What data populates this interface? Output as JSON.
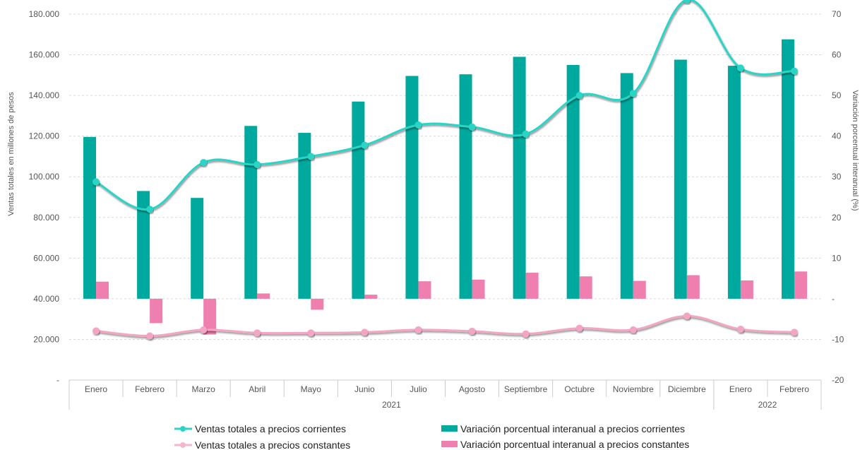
{
  "chart_data": {
    "type": "bar",
    "title": "",
    "categories": [
      "Enero",
      "Febrero",
      "Marzo",
      "Abril",
      "Mayo",
      "Junio",
      "Julio",
      "Agosto",
      "Septiembre",
      "Octubre",
      "Noviembre",
      "Diciembre",
      "Enero",
      "Febrero"
    ],
    "category_groups": [
      {
        "label": "2021",
        "count": 12
      },
      {
        "label": "2022",
        "count": 2
      }
    ],
    "ylabel_left": "Ventas totales en millones de pesos",
    "ylabel_right": "Variación porcentual interanual (%)",
    "ylim_left": [
      0,
      180000
    ],
    "ylim_right": [
      -20,
      70
    ],
    "yticks_left": [
      "-",
      "20.000",
      "40.000",
      "60.000",
      "80.000",
      "100.000",
      "120.000",
      "140.000",
      "160.000",
      "180.000"
    ],
    "yticks_right": [
      "-20",
      "-10",
      "-",
      "10",
      "20",
      "30",
      "40",
      "50",
      "60",
      "70"
    ],
    "grid": true,
    "legend_position": "bottom",
    "series": [
      {
        "name": "Ventas totales a precios corrientes",
        "type": "line",
        "axis": "left",
        "color": "#2ad4c6",
        "values": [
          97500,
          84000,
          107000,
          106000,
          110000,
          115500,
          125500,
          124500,
          121000,
          140000,
          141000,
          187000,
          153500,
          152000
        ]
      },
      {
        "name": "Ventas totales a precios constantes",
        "type": "line",
        "axis": "left",
        "color": "#f2a6c4",
        "values": [
          24200,
          21700,
          24700,
          23200,
          23200,
          23500,
          24700,
          24000,
          22700,
          25500,
          24700,
          31500,
          25000,
          23500
        ]
      },
      {
        "name": "Variación porcentual interanual a precios corrientes",
        "type": "bar",
        "axis": "right",
        "color": "#00a99d",
        "values": [
          39.8,
          26.5,
          24.8,
          42.5,
          40.8,
          48.5,
          54.8,
          55.2,
          59.5,
          57.5,
          55.5,
          58.8,
          57.3,
          63.8
        ]
      },
      {
        "name": "Variación porcentual interanual a precios constantes",
        "type": "bar",
        "axis": "right",
        "color": "#ee7fae",
        "values": [
          4.2,
          -6.0,
          -8.8,
          1.3,
          -2.7,
          1.0,
          4.3,
          4.7,
          6.4,
          5.5,
          4.4,
          5.8,
          4.5,
          6.7
        ]
      }
    ]
  }
}
